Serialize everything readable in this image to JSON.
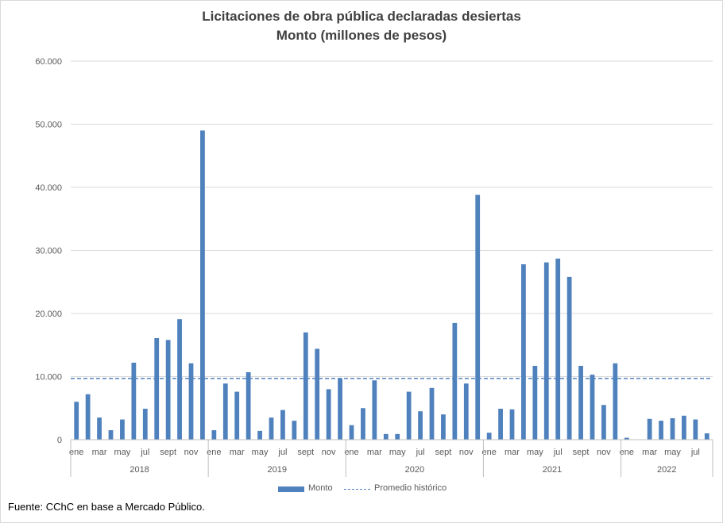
{
  "chart_data": {
    "type": "bar",
    "title": "Licitaciones de obra pública declaradas desiertas",
    "subtitle": "Monto (millones de pesos)",
    "ylim": [
      0,
      60000
    ],
    "yticks": [
      "0",
      "10.000",
      "20.000",
      "30.000",
      "40.000",
      "50.000",
      "60.000"
    ],
    "ytick_values": [
      0,
      10000,
      20000,
      30000,
      40000,
      50000,
      60000
    ],
    "grid": true,
    "month_labels": [
      "ene",
      "",
      "mar",
      "",
      "may",
      "",
      "jul",
      "",
      "sept",
      "",
      "nov",
      ""
    ],
    "years": [
      {
        "year": "2018",
        "months": 12
      },
      {
        "year": "2019",
        "months": 12
      },
      {
        "year": "2020",
        "months": 12
      },
      {
        "year": "2021",
        "months": 12
      },
      {
        "year": "2022",
        "months": 8
      }
    ],
    "series": [
      {
        "name": "Monto",
        "color": "#4f81bd",
        "values": [
          6000,
          7200,
          3500,
          1500,
          3200,
          12200,
          4900,
          16100,
          15800,
          19100,
          12100,
          49000,
          1500,
          8900,
          7600,
          10700,
          1400,
          3500,
          4700,
          3000,
          17000,
          14400,
          8000,
          9700,
          2300,
          5000,
          9400,
          900,
          900,
          7600,
          4500,
          8200,
          4000,
          18500,
          8900,
          38800,
          1100,
          4900,
          4800,
          27800,
          11700,
          28100,
          28700,
          25800,
          11700,
          10300,
          5500,
          12100,
          300,
          0,
          3300,
          3000,
          3400,
          3800,
          3200,
          1000
        ]
      },
      {
        "name": "Promedio histórico",
        "style": "dashed",
        "color": "#4f81bd",
        "value": 9700
      }
    ],
    "legend": [
      "Monto",
      "Promedio histórico"
    ],
    "legend_position": "bottom"
  },
  "source": "Fuente: CChC en base a Mercado Público."
}
